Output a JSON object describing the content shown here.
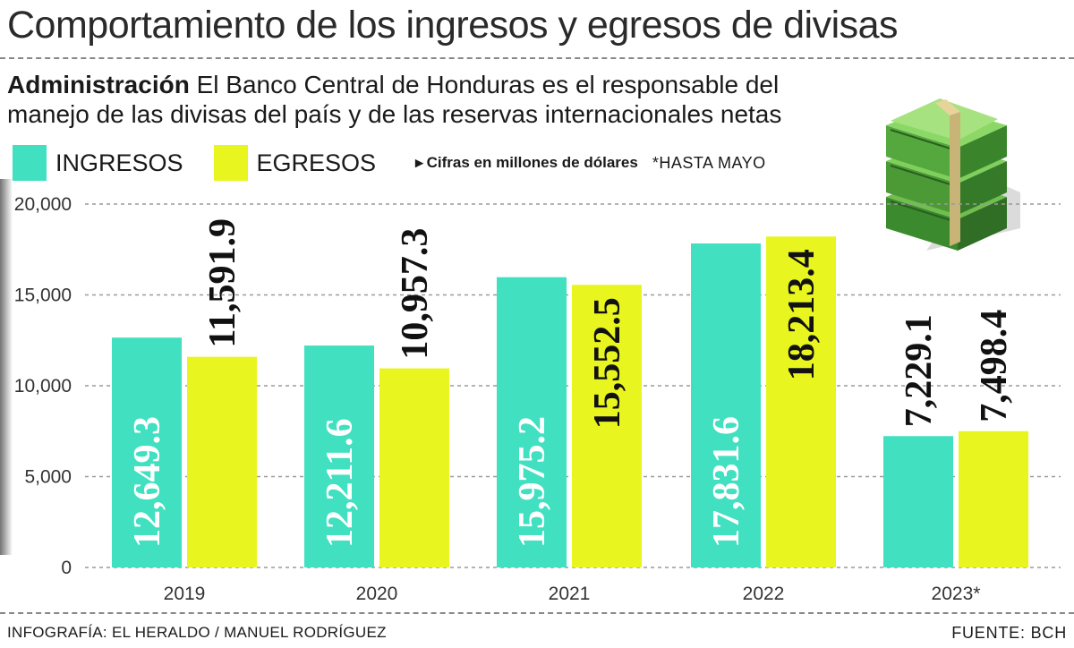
{
  "title": "Comportamiento de los ingresos y egresos de divisas",
  "subtitle": {
    "lead": "Administración",
    "text": "El Banco Central de Honduras es el responsable del manejo de las divisas del país y de las reservas internacionales netas"
  },
  "legend": {
    "ingresos": "INGRESOS",
    "egresos": "EGRESOS",
    "units_note": "Cifras en millones de dólares",
    "period_note": "*HASTA MAYO"
  },
  "colors": {
    "ingresos": "#40e0c0",
    "egresos": "#e8f51e"
  },
  "chart_data": {
    "type": "bar",
    "categories": [
      "2019",
      "2020",
      "2021",
      "2022",
      "2023*"
    ],
    "series": [
      {
        "name": "INGRESOS",
        "values": [
          12649.3,
          12211.6,
          15975.2,
          17831.6,
          7229.1
        ],
        "labels": [
          "12,649.3",
          "12,211.6",
          "15,975.2",
          "17,831.6",
          "7,229.1"
        ]
      },
      {
        "name": "EGRESOS",
        "values": [
          11591.9,
          10957.3,
          15552.5,
          18213.4,
          7498.4
        ],
        "labels": [
          "11,591.9",
          "10,957.3",
          "15,552.5",
          "18,213.4",
          "7,498.4"
        ]
      }
    ],
    "yticks": [
      0,
      5000,
      10000,
      15000,
      20000
    ],
    "ytick_labels": [
      "0",
      "5,000",
      "10,000",
      "15,000",
      "20,000"
    ],
    "ylim": [
      0,
      20000
    ],
    "grid": true,
    "legend_position": "top-left"
  },
  "footer": {
    "credit": "INFOGRAFÍA: EL HERALDO / MANUEL RODRÍGUEZ",
    "source": "FUENTE:  BCH"
  }
}
